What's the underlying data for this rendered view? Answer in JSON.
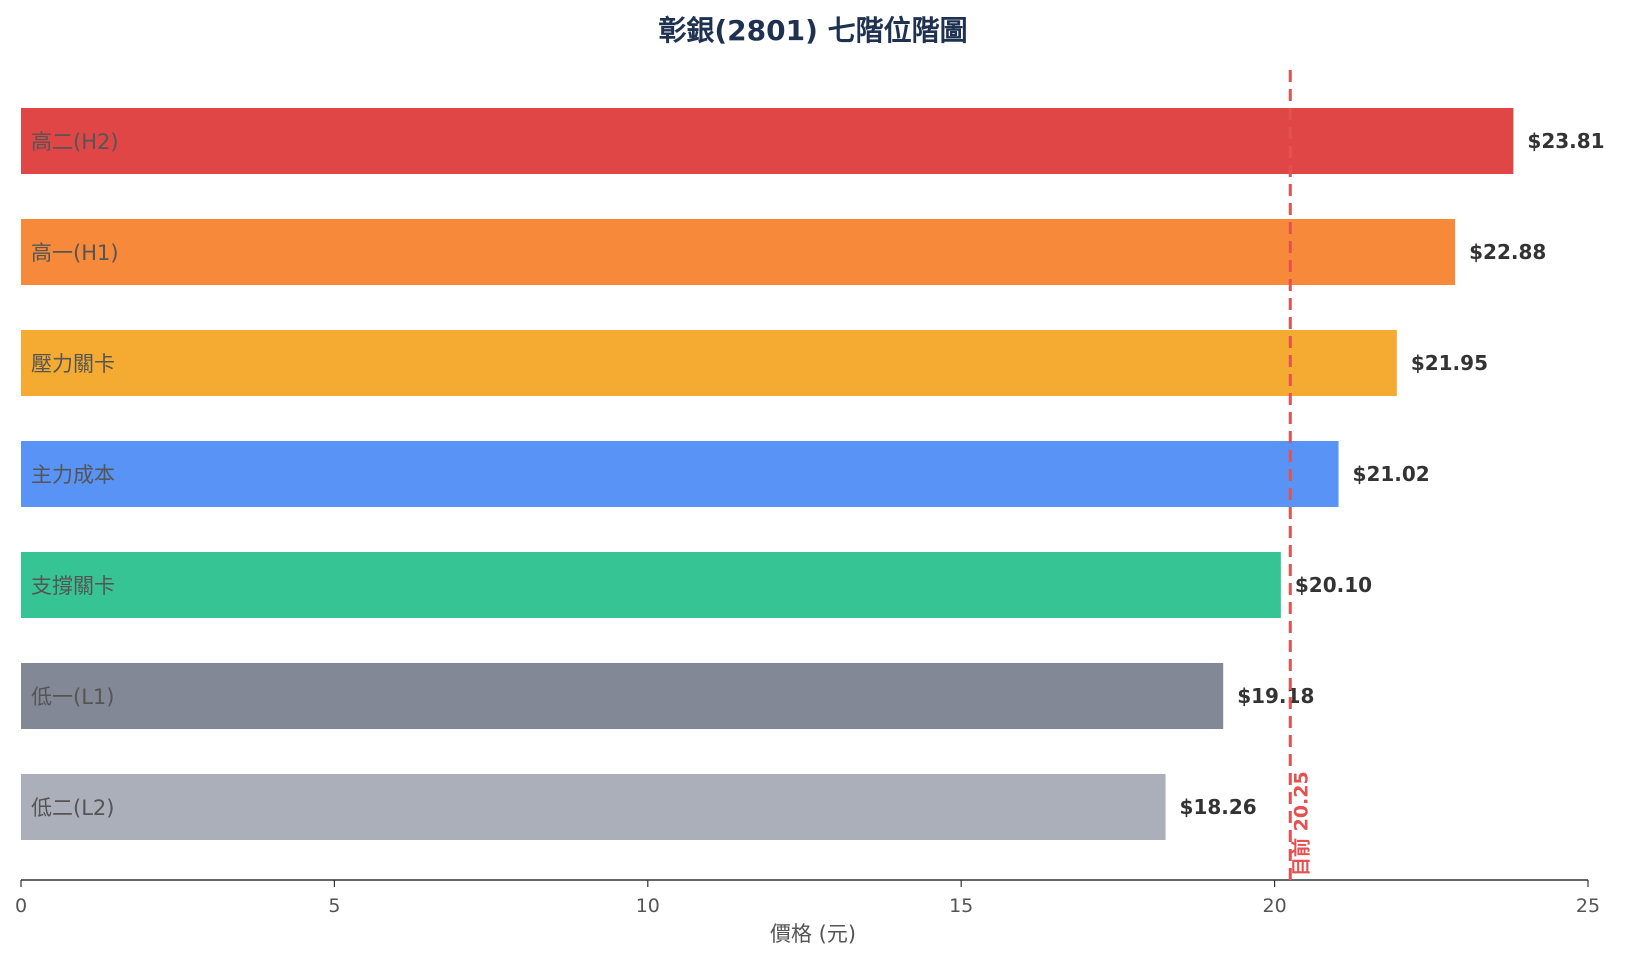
{
  "chart_data": {
    "type": "bar",
    "orientation": "horizontal",
    "title": "彰銀(2801) 七階位階圖",
    "xlabel": "價格 (元)",
    "ylabel": "",
    "xlim": [
      0,
      25
    ],
    "xticks": [
      0,
      5,
      10,
      15,
      20,
      25
    ],
    "categories": [
      "高二(H2)",
      "高一(H1)",
      "壓力關卡",
      "主力成本",
      "支撐關卡",
      "低一(L1)",
      "低二(L2)"
    ],
    "values": [
      23.81,
      22.88,
      21.95,
      21.02,
      20.1,
      19.18,
      18.26
    ],
    "value_labels": [
      "$23.81",
      "$22.88",
      "$21.95",
      "$21.02",
      "$20.10",
      "$19.18",
      "$18.26"
    ],
    "colors": [
      "#e04646",
      "#f78a3a",
      "#f5ab32",
      "#5893f5",
      "#37c494",
      "#838896",
      "#abafba"
    ],
    "reference_line": {
      "label": "目前 20.25",
      "value": 20.25,
      "color": "#e55050",
      "style": "dashed"
    },
    "grid": false,
    "legend": "none"
  }
}
